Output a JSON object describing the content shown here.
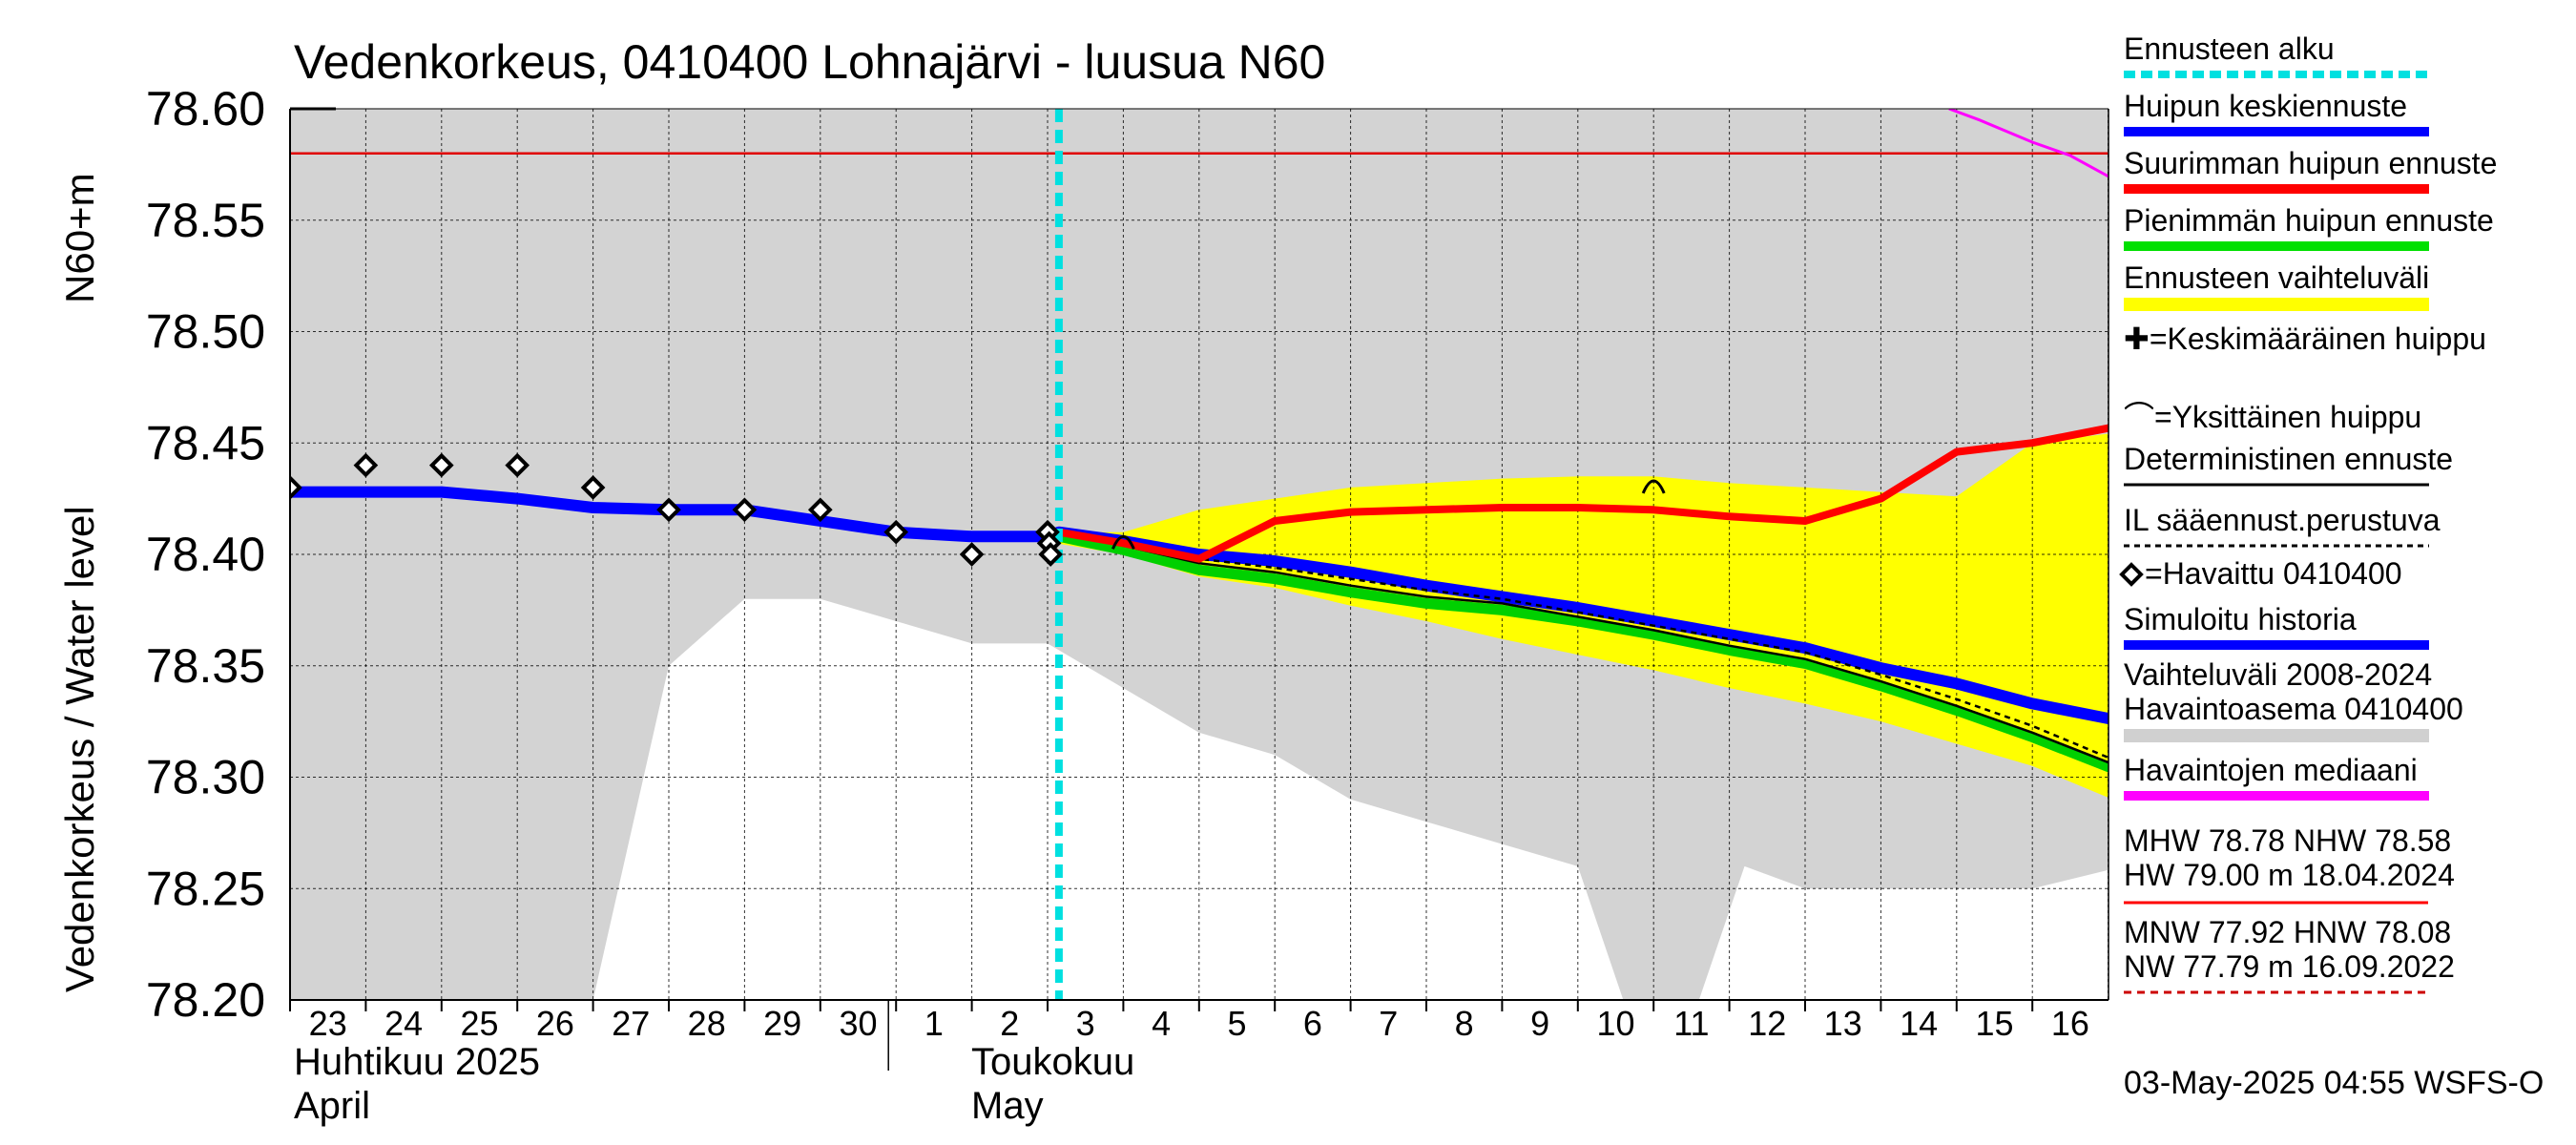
{
  "chart_data": {
    "type": "line",
    "title": "Vedenkorkeus, 0410400 Lohnajärvi - luusua N60",
    "ylabel_left": "Vedenkorkeus / Water level",
    "ylabel_unit": "N60+m",
    "ylim": [
      78.2,
      78.6
    ],
    "yticks": [
      "78.20",
      "78.25",
      "78.30",
      "78.35",
      "78.40",
      "78.45",
      "78.50",
      "78.55",
      "78.60"
    ],
    "x_range_days": [
      "2025-04-23",
      "2025-05-17"
    ],
    "grid": true,
    "day_labels": [
      "23",
      "24",
      "25",
      "26",
      "27",
      "28",
      "29",
      "30",
      "1",
      "2",
      "3",
      "4",
      "5",
      "6",
      "7",
      "8",
      "9",
      "10",
      "11",
      "12",
      "13",
      "14",
      "15",
      "16"
    ],
    "month_labels": [
      {
        "fi": "Huhtikuu  2025",
        "en": "April"
      },
      {
        "fi": "Toukokuu",
        "en": "May"
      }
    ],
    "hw_line": 78.58,
    "forecast_start": 10.15,
    "legend_position": "right",
    "legend": [
      {
        "label": "Ennusteen alku",
        "color": "#00e0e0",
        "style": "dashed"
      },
      {
        "label": "Huipun keskiennuste",
        "color": "#0000ff",
        "style": "solid"
      },
      {
        "label": "Suurimman huipun ennuste",
        "color": "#ff0000",
        "style": "solid"
      },
      {
        "label": "Pienimmän huipun ennuste",
        "color": "#00e000",
        "style": "solid"
      },
      {
        "label": "Ennusteen vaihteluväli",
        "color": "#ffff00",
        "style": "band"
      },
      {
        "label": "✚=Keskimääräinen huippu",
        "color": "#000000",
        "style": "text"
      },
      {
        "label": "⌒=Yksittäinen huippu",
        "color": "#000000",
        "style": "text"
      },
      {
        "label": "Deterministinen ennuste",
        "color": "#000000",
        "style": "solid"
      },
      {
        "label": "IL sääennust.perustuva",
        "color": "#000000",
        "style": "dotted"
      },
      {
        "label": "=Havaittu 0410400",
        "color": "#000000",
        "style": "marker"
      },
      {
        "label": "Simuloitu historia",
        "color": "#0000ff",
        "style": "solid"
      },
      {
        "label": "Vaihteluväli 2008-2024\n Havaintoasema 0410400",
        "color": "#d0d0d0",
        "style": "band"
      },
      {
        "label": "Havaintojen mediaani",
        "color": "#ff00ff",
        "style": "solid"
      }
    ],
    "stats": {
      "line1": "MHW  78.78 NHW  78.58",
      "line2": "HW  79.00 m 18.04.2024",
      "line3": "MNW  77.92 HNW  78.08",
      "line4": "NW  77.79 m 16.09.2022"
    },
    "footer": "03-May-2025 04:55 WSFS-O",
    "series": {
      "hist_range": {
        "upper": [
          [
            0,
            78.6
          ],
          [
            24.2,
            78.6
          ]
        ],
        "lower": [
          [
            0,
            78.2
          ],
          [
            4,
            78.2
          ],
          [
            5,
            78.35
          ],
          [
            6,
            78.38
          ],
          [
            7,
            78.38
          ],
          [
            8,
            78.37
          ],
          [
            9,
            78.36
          ],
          [
            10,
            78.36
          ],
          [
            11,
            78.34
          ],
          [
            12,
            78.32
          ],
          [
            13,
            78.31
          ],
          [
            14,
            78.29
          ],
          [
            15,
            78.28
          ],
          [
            16,
            78.27
          ],
          [
            17,
            78.26
          ],
          [
            17.6,
            78.2
          ],
          [
            18.6,
            78.2
          ],
          [
            19.2,
            78.26
          ],
          [
            20,
            78.25
          ],
          [
            21,
            78.25
          ],
          [
            22,
            78.25
          ],
          [
            23,
            78.25
          ],
          [
            24.2,
            78.26
          ]
        ]
      },
      "forecast_band": {
        "upper": [
          [
            10.1,
            78.41
          ],
          [
            11,
            78.41
          ],
          [
            12,
            78.42
          ],
          [
            13,
            78.425
          ],
          [
            14,
            78.43
          ],
          [
            15,
            78.432
          ],
          [
            16,
            78.434
          ],
          [
            17,
            78.435
          ],
          [
            18,
            78.435
          ],
          [
            19,
            78.432
          ],
          [
            20,
            78.43
          ],
          [
            21,
            78.428
          ],
          [
            22,
            78.426
          ],
          [
            23,
            78.45
          ],
          [
            24.2,
            78.455
          ]
        ],
        "lower": [
          [
            10.1,
            78.405
          ],
          [
            11,
            78.4
          ],
          [
            12,
            78.39
          ],
          [
            13,
            78.385
          ],
          [
            14,
            78.377
          ],
          [
            15,
            78.37
          ],
          [
            16,
            78.362
          ],
          [
            17,
            78.355
          ],
          [
            18,
            78.348
          ],
          [
            19,
            78.34
          ],
          [
            20,
            78.333
          ],
          [
            21,
            78.325
          ],
          [
            22,
            78.315
          ],
          [
            23,
            78.305
          ],
          [
            24.2,
            78.288
          ]
        ]
      },
      "simulated": [
        [
          0,
          78.428
        ],
        [
          1,
          78.428
        ],
        [
          2,
          78.428
        ],
        [
          3,
          78.425
        ],
        [
          4,
          78.421
        ],
        [
          5,
          78.42
        ],
        [
          6,
          78.42
        ],
        [
          7,
          78.415
        ],
        [
          8,
          78.41
        ],
        [
          9,
          78.408
        ],
        [
          10,
          78.408
        ],
        [
          10.15,
          78.41
        ],
        [
          11,
          78.406
        ],
        [
          12,
          78.4
        ],
        [
          13,
          78.397
        ],
        [
          14,
          78.392
        ],
        [
          15,
          78.386
        ],
        [
          16,
          78.381
        ],
        [
          17,
          78.376
        ],
        [
          18,
          78.37
        ],
        [
          19,
          78.364
        ],
        [
          20,
          78.358
        ],
        [
          21,
          78.349
        ],
        [
          22,
          78.342
        ],
        [
          23,
          78.333
        ],
        [
          24.2,
          78.325
        ]
      ],
      "max_peak": [
        [
          10.15,
          78.41
        ],
        [
          11,
          78.405
        ],
        [
          12,
          78.398
        ],
        [
          13,
          78.415
        ],
        [
          14,
          78.419
        ],
        [
          15,
          78.42
        ],
        [
          16,
          78.421
        ],
        [
          17,
          78.421
        ],
        [
          18,
          78.42
        ],
        [
          19,
          78.417
        ],
        [
          20,
          78.415
        ],
        [
          21,
          78.425
        ],
        [
          22,
          78.446
        ],
        [
          23,
          78.45
        ],
        [
          24.2,
          78.458
        ]
      ],
      "min_peak": [
        [
          10.15,
          78.408
        ],
        [
          11,
          78.402
        ],
        [
          12,
          78.393
        ],
        [
          13,
          78.389
        ],
        [
          14,
          78.383
        ],
        [
          15,
          78.378
        ],
        [
          16,
          78.375
        ],
        [
          17,
          78.37
        ],
        [
          18,
          78.364
        ],
        [
          19,
          78.357
        ],
        [
          20,
          78.351
        ],
        [
          21,
          78.341
        ],
        [
          22,
          78.33
        ],
        [
          23,
          78.318
        ],
        [
          24.2,
          78.302
        ]
      ],
      "deterministic": [
        [
          10.15,
          78.409
        ],
        [
          11,
          78.404
        ],
        [
          12,
          78.396
        ],
        [
          13,
          78.392
        ],
        [
          14,
          78.386
        ],
        [
          15,
          78.381
        ],
        [
          16,
          78.378
        ],
        [
          17,
          78.372
        ],
        [
          18,
          78.366
        ],
        [
          19,
          78.359
        ],
        [
          20,
          78.353
        ],
        [
          21,
          78.343
        ],
        [
          22,
          78.332
        ],
        [
          23,
          78.32
        ],
        [
          24.2,
          78.304
        ]
      ],
      "il_dotted": [
        [
          10.15,
          78.41
        ],
        [
          11,
          78.405
        ],
        [
          12,
          78.398
        ],
        [
          13,
          78.394
        ],
        [
          14,
          78.389
        ],
        [
          15,
          78.384
        ],
        [
          16,
          78.38
        ],
        [
          17,
          78.374
        ],
        [
          18,
          78.368
        ],
        [
          19,
          78.362
        ],
        [
          20,
          78.356
        ],
        [
          21,
          78.346
        ],
        [
          22,
          78.335
        ],
        [
          23,
          78.323
        ],
        [
          24.2,
          78.306
        ]
      ],
      "median": [
        [
          21.9,
          78.6
        ],
        [
          22.3,
          78.595
        ],
        [
          23,
          78.585
        ],
        [
          23.5,
          78.579
        ],
        [
          24.2,
          78.566
        ],
        [
          24.6,
          78.56
        ],
        [
          25.3,
          78.55
        ]
      ],
      "observed": [
        [
          0,
          78.43
        ],
        [
          1,
          78.44
        ],
        [
          2,
          78.44
        ],
        [
          3,
          78.44
        ],
        [
          4,
          78.43
        ],
        [
          5,
          78.42
        ],
        [
          6,
          78.42
        ],
        [
          7,
          78.42
        ],
        [
          8,
          78.41
        ],
        [
          9,
          78.4
        ],
        [
          10,
          78.41
        ],
        [
          10.02,
          78.405
        ],
        [
          10.04,
          78.4
        ]
      ],
      "single_peaks": [
        [
          11,
          78.405
        ],
        [
          18,
          78.43
        ]
      ]
    }
  }
}
